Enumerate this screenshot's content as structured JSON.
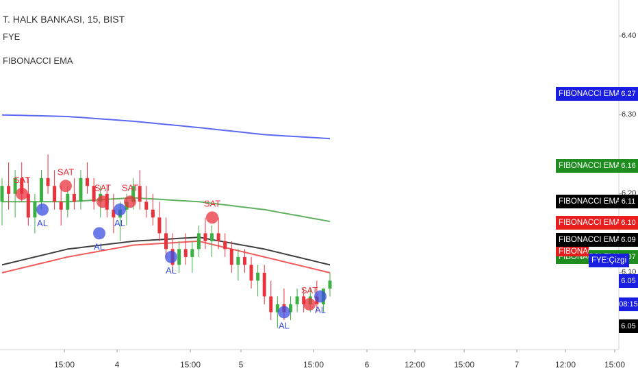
{
  "header": {
    "title": "T. HALK BANKASI, 15, BIST",
    "indicator1": "FYE",
    "indicator2": "FIBONACCI EMA"
  },
  "colors": {
    "up": "#3cb043",
    "down": "#e8323c",
    "buy": "#3b4fe0",
    "sell": "#e8323c",
    "blue_line": "#5b6af0",
    "green_line": "#5fb05f",
    "black_line": "#404040",
    "red_line": "#f05a5a",
    "axis_text": "#333333"
  },
  "chart_data": {
    "type": "candlestick",
    "title": "T. HALK BANKASI, 15, BIST",
    "ylim": [
      6.02,
      6.43
    ],
    "y_ticks": [
      "6.40",
      "6.30",
      "6.20",
      "6.10",
      "6.03"
    ],
    "x_ticks": [
      "15:00",
      "4",
      "15:00",
      "5",
      "15:00",
      "6",
      "12:00",
      "15:00",
      "7",
      "12:00",
      "15:00"
    ],
    "signals": [
      {
        "label": "SAT",
        "type": "sell"
      },
      {
        "label": "SAT",
        "type": "sell"
      },
      {
        "label": "SAT",
        "type": "sell"
      },
      {
        "label": "SAT",
        "type": "sell"
      },
      {
        "label": "SAT",
        "type": "sell"
      },
      {
        "label": "SAT",
        "type": "sell"
      },
      {
        "label": "AL",
        "type": "buy"
      },
      {
        "label": "AL",
        "type": "buy"
      },
      {
        "label": "AL",
        "type": "buy"
      },
      {
        "label": "AL",
        "type": "buy"
      },
      {
        "label": "AL",
        "type": "buy"
      },
      {
        "label": "AL",
        "type": "buy"
      }
    ],
    "price_tags": [
      {
        "label": "FIBONACCI EMA:Plot",
        "value": "6.27",
        "color": "#1a1ee0"
      },
      {
        "label": "FIBONACCI EMA:Plot",
        "value": "6.16",
        "color": "#1e8c1e"
      },
      {
        "label": "FIBONACCI EMA:Plot",
        "value": "6.11",
        "color": "#000000"
      },
      {
        "label": "FIBONACCI EMA:Plot",
        "value": "6.10",
        "color": "#e81e1e"
      },
      {
        "label": "FIBONACCI EMA:Plot",
        "value": "6.09",
        "color": "#000000"
      },
      {
        "label": "FIBONACCI EMA:Plot",
        "value": "6.07",
        "color": "#1e8c1e"
      },
      {
        "label": "FYE:Çizgi",
        "value": "6.05",
        "color": "#1a1ee0"
      },
      {
        "label": "",
        "value": "08:15",
        "color": "#1a1ee0"
      },
      {
        "label": "",
        "value": "6.05",
        "color": "#000000"
      }
    ],
    "overlap_label": "FIBONACCI EMA:Plot",
    "candles": [
      [
        6.19,
        6.22,
        6.16,
        6.21
      ],
      [
        6.21,
        6.24,
        6.18,
        6.2
      ],
      [
        6.2,
        6.23,
        6.17,
        6.22
      ],
      [
        6.22,
        6.24,
        6.19,
        6.2
      ],
      [
        6.2,
        6.22,
        6.16,
        6.17
      ],
      [
        6.17,
        6.2,
        6.15,
        6.19
      ],
      [
        6.19,
        6.23,
        6.18,
        6.22
      ],
      [
        6.22,
        6.25,
        6.2,
        6.21
      ],
      [
        6.21,
        6.23,
        6.18,
        6.19
      ],
      [
        6.19,
        6.21,
        6.16,
        6.18
      ],
      [
        6.18,
        6.21,
        6.17,
        6.2
      ],
      [
        6.2,
        6.22,
        6.18,
        6.19
      ],
      [
        6.19,
        6.23,
        6.18,
        6.22
      ],
      [
        6.22,
        6.24,
        6.2,
        6.21
      ],
      [
        6.21,
        6.22,
        6.18,
        6.19
      ],
      [
        6.19,
        6.21,
        6.17,
        6.2
      ],
      [
        6.2,
        6.21,
        6.17,
        6.18
      ],
      [
        6.18,
        6.2,
        6.15,
        6.17
      ],
      [
        6.17,
        6.19,
        6.14,
        6.18
      ],
      [
        6.18,
        6.2,
        6.16,
        6.19
      ],
      [
        6.19,
        6.22,
        6.18,
        6.21
      ],
      [
        6.21,
        6.23,
        6.18,
        6.19
      ],
      [
        6.19,
        6.21,
        6.17,
        6.18
      ],
      [
        6.18,
        6.2,
        6.16,
        6.17
      ],
      [
        6.17,
        6.19,
        6.14,
        6.15
      ],
      [
        6.15,
        6.17,
        6.12,
        6.13
      ],
      [
        6.13,
        6.15,
        6.1,
        6.11
      ],
      [
        6.11,
        6.14,
        6.1,
        6.13
      ],
      [
        6.13,
        6.15,
        6.11,
        6.12
      ],
      [
        6.12,
        6.14,
        6.1,
        6.13
      ],
      [
        6.13,
        6.16,
        6.12,
        6.15
      ],
      [
        6.15,
        6.17,
        6.13,
        6.14
      ],
      [
        6.14,
        6.16,
        6.12,
        6.15
      ],
      [
        6.15,
        6.17,
        6.13,
        6.14
      ],
      [
        6.14,
        6.15,
        6.12,
        6.13
      ],
      [
        6.13,
        6.14,
        6.1,
        6.11
      ],
      [
        6.11,
        6.13,
        6.09,
        6.12
      ],
      [
        6.12,
        6.13,
        6.1,
        6.11
      ],
      [
        6.11,
        6.12,
        6.08,
        6.09
      ],
      [
        6.09,
        6.11,
        6.07,
        6.1
      ],
      [
        6.1,
        6.11,
        6.06,
        6.07
      ],
      [
        6.07,
        6.09,
        6.04,
        6.05
      ],
      [
        6.05,
        6.07,
        6.03,
        6.06
      ],
      [
        6.06,
        6.08,
        6.04,
        6.05
      ],
      [
        6.05,
        6.07,
        6.04,
        6.06
      ],
      [
        6.06,
        6.08,
        6.05,
        6.07
      ],
      [
        6.07,
        6.08,
        6.05,
        6.06
      ],
      [
        6.06,
        6.08,
        6.05,
        6.07
      ],
      [
        6.07,
        6.09,
        6.05,
        6.06
      ],
      [
        6.06,
        6.08,
        6.05,
        6.08
      ],
      [
        6.08,
        6.1,
        6.07,
        6.09
      ]
    ]
  },
  "x_axis": {
    "labels": [
      "15:00",
      "4",
      "15:00",
      "5",
      "15:00",
      "6",
      "12:00",
      "15:00",
      "7",
      "12:00",
      "15:00"
    ]
  }
}
